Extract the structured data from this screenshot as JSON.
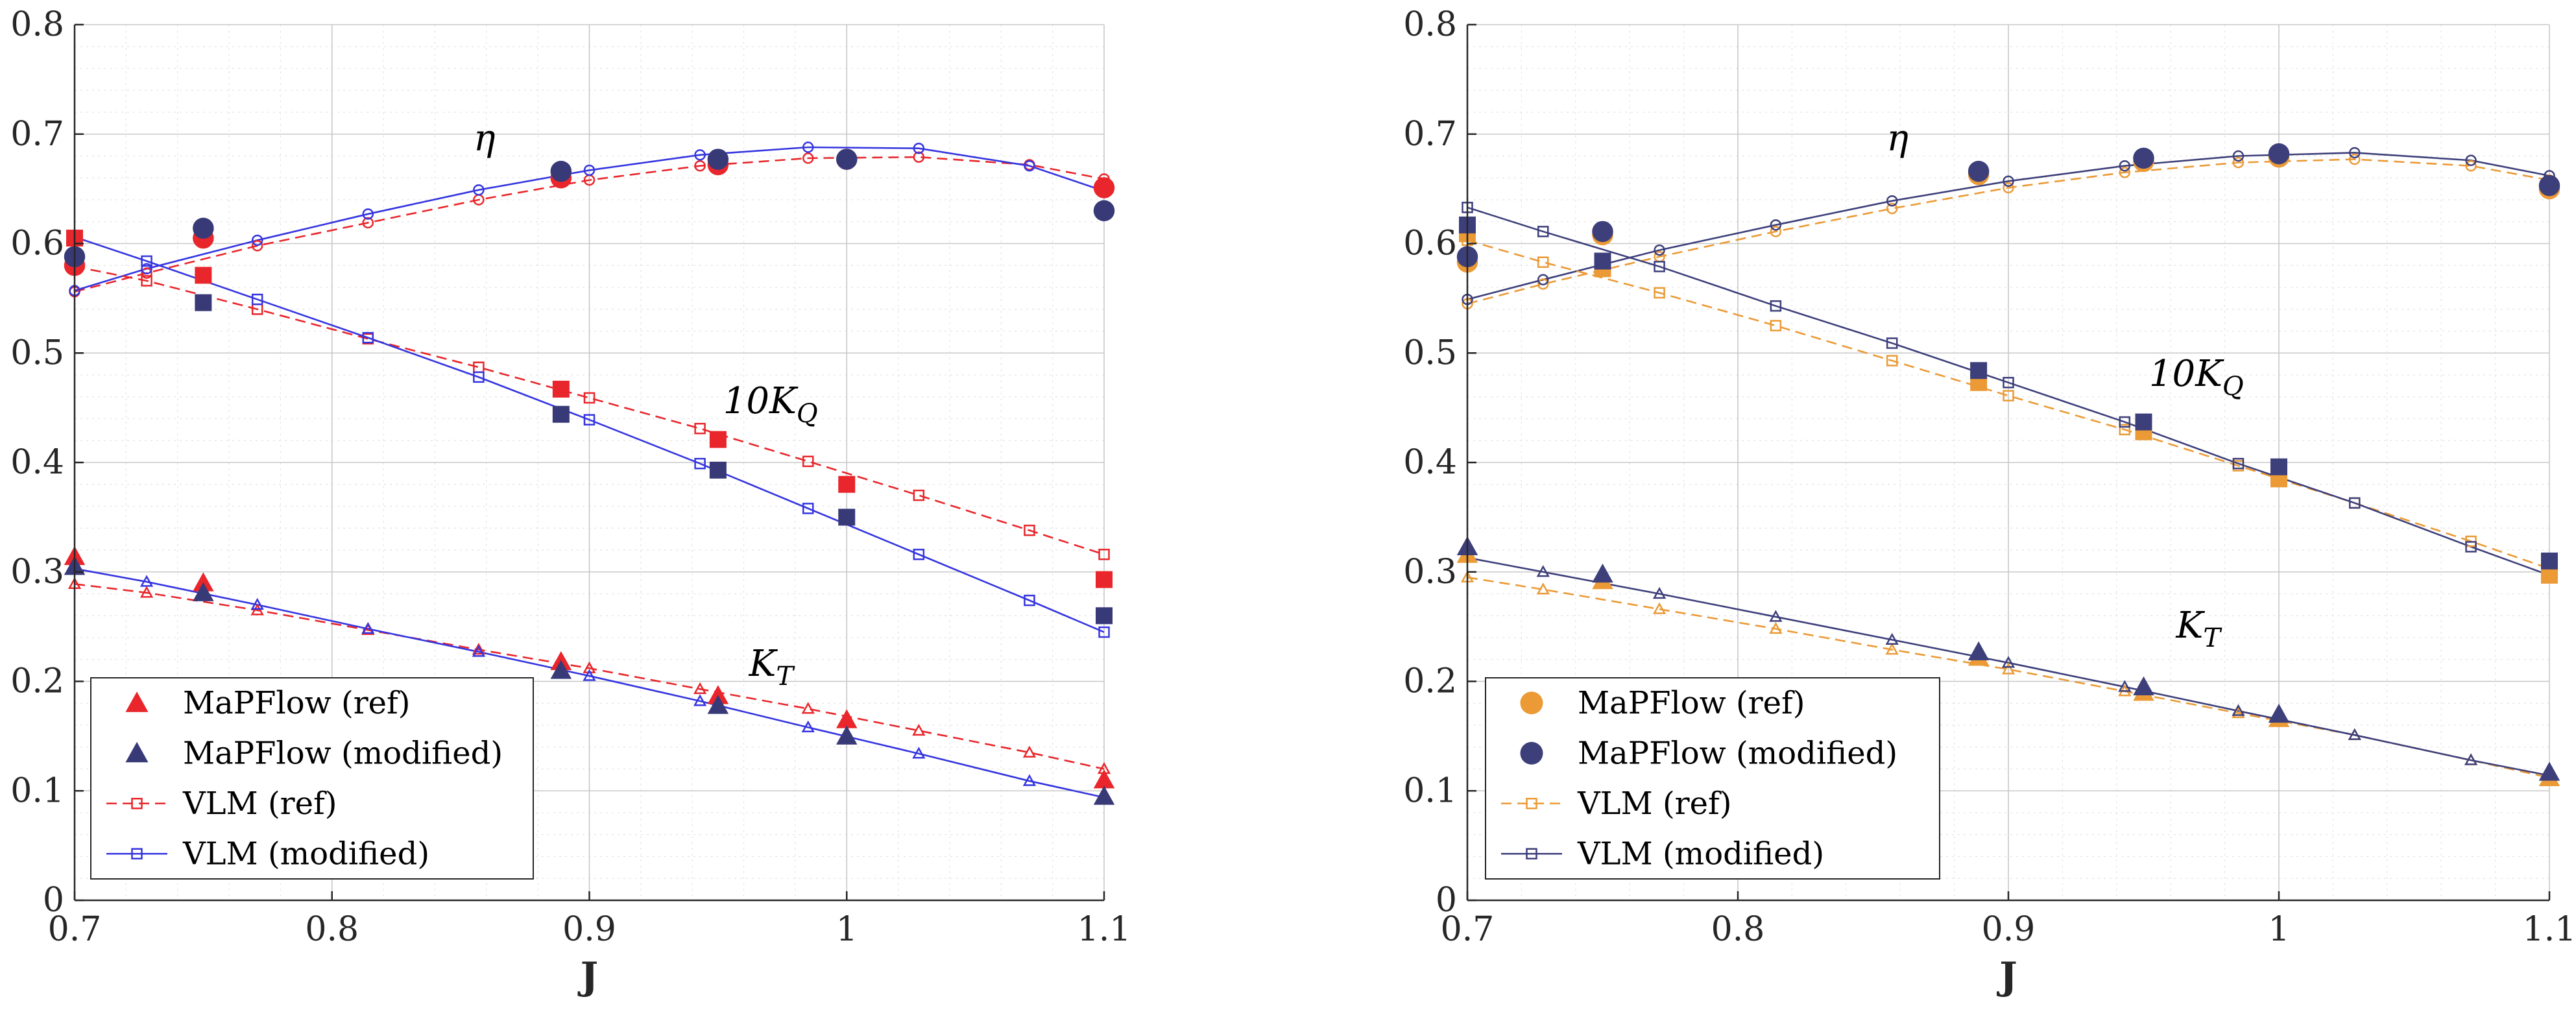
{
  "chart_data": [
    {
      "type": "line",
      "panel": "left",
      "xlabel": "J",
      "ylabel": "",
      "xlim": [
        0.7,
        1.1
      ],
      "ylim": [
        0,
        0.8
      ],
      "xticks": [
        0.7,
        0.8,
        0.9,
        1,
        1.1
      ],
      "xtick_labels": [
        "0.7",
        "0.8",
        "0.9",
        "1",
        "1.1"
      ],
      "yticks": [
        0,
        0.1,
        0.2,
        0.3,
        0.4,
        0.5,
        0.6,
        0.7,
        0.8
      ],
      "ytick_labels": [
        "0",
        "0.1",
        "0.2",
        "0.3",
        "0.4",
        "0.5",
        "0.6",
        "0.7",
        "0.8"
      ],
      "grid": true,
      "legend_position": "bottom-left",
      "colors": {
        "ref": "#e8262b",
        "modified": "#3535e0",
        "ref_points": "#e8262b",
        "modified_points": "#383a78"
      },
      "annotations": [
        {
          "text": "η",
          "x": 0.855,
          "y": 0.685
        },
        {
          "text": "10K",
          "sub": "Q",
          "x": 0.952,
          "y": 0.445
        },
        {
          "text": "K",
          "sub": "T",
          "x": 0.962,
          "y": 0.205
        }
      ],
      "legend": [
        {
          "label": "MaPFlow (ref)",
          "marker": "triangle-filled",
          "color": "#e8262b"
        },
        {
          "label": "MaPFlow (modified)",
          "marker": "triangle-filled",
          "color": "#383a78"
        },
        {
          "label": "VLM (ref)",
          "marker": "square-open",
          "line": "dashed",
          "color": "#e8262b"
        },
        {
          "label": "VLM (modified)",
          "marker": "square-open",
          "line": "solid",
          "color": "#3535e0"
        }
      ],
      "series": [
        {
          "name": "VLM (ref) η",
          "style": "dashed",
          "marker": "circle-open",
          "color": "#e8262b",
          "x": [
            0.7,
            0.728,
            0.771,
            0.814,
            0.857,
            0.9,
            0.943,
            0.985,
            1.028,
            1.071,
            1.1
          ],
          "y": [
            0.556,
            0.573,
            0.598,
            0.619,
            0.64,
            0.658,
            0.671,
            0.678,
            0.679,
            0.672,
            0.659
          ]
        },
        {
          "name": "VLM (modified) η",
          "style": "solid",
          "marker": "circle-open",
          "color": "#3535e0",
          "x": [
            0.7,
            0.728,
            0.771,
            0.814,
            0.857,
            0.9,
            0.943,
            0.985,
            1.028,
            1.071,
            1.1
          ],
          "y": [
            0.557,
            0.577,
            0.603,
            0.627,
            0.649,
            0.667,
            0.681,
            0.688,
            0.687,
            0.671,
            0.648
          ]
        },
        {
          "name": "VLM (ref) 10KQ",
          "style": "dashed",
          "marker": "square-open",
          "color": "#e8262b",
          "x": [
            0.7,
            0.728,
            0.771,
            0.814,
            0.857,
            0.9,
            0.943,
            0.985,
            1.028,
            1.071,
            1.1
          ],
          "y": [
            0.579,
            0.566,
            0.54,
            0.513,
            0.487,
            0.459,
            0.431,
            0.401,
            0.37,
            0.338,
            0.316
          ]
        },
        {
          "name": "VLM (modified) 10KQ",
          "style": "solid",
          "marker": "square-open",
          "color": "#3535e0",
          "x": [
            0.7,
            0.728,
            0.771,
            0.814,
            0.857,
            0.9,
            0.943,
            0.985,
            1.028,
            1.071,
            1.1
          ],
          "y": [
            0.606,
            0.584,
            0.549,
            0.514,
            0.478,
            0.439,
            0.399,
            0.358,
            0.316,
            0.274,
            0.245
          ]
        },
        {
          "name": "VLM (ref) KT",
          "style": "dashed",
          "marker": "triangle-open",
          "color": "#e8262b",
          "x": [
            0.7,
            0.728,
            0.771,
            0.814,
            0.857,
            0.9,
            0.943,
            0.985,
            1.028,
            1.071,
            1.1
          ],
          "y": [
            0.289,
            0.281,
            0.265,
            0.247,
            0.229,
            0.212,
            0.193,
            0.175,
            0.155,
            0.135,
            0.12
          ]
        },
        {
          "name": "VLM (modified) KT",
          "style": "solid",
          "marker": "triangle-open",
          "color": "#3535e0",
          "x": [
            0.7,
            0.728,
            0.771,
            0.814,
            0.857,
            0.9,
            0.943,
            0.985,
            1.028,
            1.071,
            1.1
          ],
          "y": [
            0.303,
            0.291,
            0.27,
            0.248,
            0.227,
            0.205,
            0.182,
            0.158,
            0.134,
            0.109,
            0.094
          ]
        },
        {
          "name": "MaPFlow (ref) η",
          "marker": "circle-filled",
          "color": "#e8262b",
          "x": [
            0.7,
            0.75,
            0.889,
            0.95,
            1,
            1.1
          ],
          "y": [
            0.58,
            0.605,
            0.66,
            0.672,
            0.677,
            0.651
          ]
        },
        {
          "name": "MaPFlow (modified) η",
          "marker": "circle-filled",
          "color": "#383a78",
          "x": [
            0.7,
            0.75,
            0.889,
            0.95,
            1,
            1.1
          ],
          "y": [
            0.588,
            0.614,
            0.666,
            0.677,
            0.677,
            0.63
          ]
        },
        {
          "name": "MaPFlow (ref) 10KQ",
          "marker": "square-filled",
          "color": "#e8262b",
          "x": [
            0.7,
            0.75,
            0.889,
            0.95,
            1,
            1.1
          ],
          "y": [
            0.605,
            0.571,
            0.467,
            0.421,
            0.38,
            0.293
          ]
        },
        {
          "name": "MaPFlow (modified) 10KQ",
          "marker": "square-filled",
          "color": "#383a78",
          "x": [
            0.75,
            0.889,
            0.95,
            1,
            1.1
          ],
          "y": [
            0.546,
            0.444,
            0.393,
            0.35,
            0.26
          ]
        },
        {
          "name": "MaPFlow (ref) KT",
          "marker": "triangle-filled",
          "color": "#e8262b",
          "x": [
            0.7,
            0.75,
            0.889,
            0.95,
            1,
            1.1
          ],
          "y": [
            0.314,
            0.29,
            0.218,
            0.187,
            0.165,
            0.11
          ]
        },
        {
          "name": "MaPFlow (modified) KT",
          "marker": "triangle-filled",
          "color": "#383a78",
          "x": [
            0.7,
            0.75,
            0.889,
            0.95,
            1,
            1.1
          ],
          "y": [
            0.305,
            0.281,
            0.21,
            0.178,
            0.15,
            0.095
          ]
        }
      ]
    },
    {
      "type": "line",
      "panel": "right",
      "xlabel": "J",
      "ylabel": "",
      "xlim": [
        0.7,
        1.1
      ],
      "ylim": [
        0,
        0.8
      ],
      "xticks": [
        0.7,
        0.8,
        0.9,
        1,
        1.1
      ],
      "xtick_labels": [
        "0.7",
        "0.8",
        "0.9",
        "1",
        "1.1"
      ],
      "yticks": [
        0,
        0.1,
        0.2,
        0.3,
        0.4,
        0.5,
        0.6,
        0.7,
        0.8
      ],
      "ytick_labels": [
        "0",
        "0.1",
        "0.2",
        "0.3",
        "0.4",
        "0.5",
        "0.6",
        "0.7",
        "0.8"
      ],
      "grid": true,
      "legend_position": "bottom-left",
      "colors": {
        "ref": "#eb9a35",
        "modified": "#3d3f7a"
      },
      "annotations": [
        {
          "text": "η",
          "x": 0.855,
          "y": 0.685
        },
        {
          "text": "10K",
          "sub": "Q",
          "x": 0.952,
          "y": 0.47
        },
        {
          "text": "K",
          "sub": "T",
          "x": 0.962,
          "y": 0.24
        }
      ],
      "legend": [
        {
          "label": "MaPFlow (ref)",
          "marker": "circle-filled",
          "color": "#eb9a35"
        },
        {
          "label": "MaPFlow (modified)",
          "marker": "circle-filled",
          "color": "#3d3f7a"
        },
        {
          "label": "VLM (ref)",
          "marker": "square-open",
          "line": "dashed",
          "color": "#eb9a35"
        },
        {
          "label": "VLM (modified)",
          "marker": "square-open",
          "line": "solid",
          "color": "#3d3f7a"
        }
      ],
      "series": [
        {
          "name": "VLM (ref) η",
          "style": "dashed",
          "marker": "circle-open",
          "color": "#eb9a35",
          "x": [
            0.7,
            0.728,
            0.771,
            0.814,
            0.857,
            0.9,
            0.943,
            0.985,
            1.028,
            1.071,
            1.1
          ],
          "y": [
            0.545,
            0.563,
            0.588,
            0.611,
            0.632,
            0.651,
            0.665,
            0.674,
            0.677,
            0.671,
            0.658
          ]
        },
        {
          "name": "VLM (modified) η",
          "style": "solid",
          "marker": "circle-open",
          "color": "#3d3f7a",
          "x": [
            0.7,
            0.728,
            0.771,
            0.814,
            0.857,
            0.9,
            0.943,
            0.985,
            1.028,
            1.071,
            1.1
          ],
          "y": [
            0.549,
            0.567,
            0.594,
            0.617,
            0.639,
            0.657,
            0.671,
            0.68,
            0.683,
            0.676,
            0.662
          ]
        },
        {
          "name": "VLM (ref) 10KQ",
          "style": "dashed",
          "marker": "square-open",
          "color": "#eb9a35",
          "x": [
            0.7,
            0.728,
            0.771,
            0.814,
            0.857,
            0.9,
            0.943,
            0.985,
            1.028,
            1.071,
            1.1
          ],
          "y": [
            0.603,
            0.583,
            0.555,
            0.525,
            0.493,
            0.461,
            0.43,
            0.397,
            0.363,
            0.328,
            0.303
          ]
        },
        {
          "name": "VLM (modified) 10KQ",
          "style": "solid",
          "marker": "square-open",
          "color": "#3d3f7a",
          "x": [
            0.7,
            0.728,
            0.771,
            0.814,
            0.857,
            0.9,
            0.943,
            0.985,
            1.028,
            1.071,
            1.1
          ],
          "y": [
            0.633,
            0.611,
            0.579,
            0.543,
            0.509,
            0.473,
            0.437,
            0.399,
            0.363,
            0.323,
            0.297
          ]
        },
        {
          "name": "VLM (ref) KT",
          "style": "dashed",
          "marker": "triangle-open",
          "color": "#eb9a35",
          "x": [
            0.7,
            0.728,
            0.771,
            0.814,
            0.857,
            0.9,
            0.943,
            0.985,
            1.028,
            1.071,
            1.1
          ],
          "y": [
            0.295,
            0.284,
            0.266,
            0.248,
            0.229,
            0.211,
            0.191,
            0.171,
            0.151,
            0.128,
            0.112
          ]
        },
        {
          "name": "VLM (modified) KT",
          "style": "solid",
          "marker": "triangle-open",
          "color": "#3d3f7a",
          "x": [
            0.7,
            0.728,
            0.771,
            0.814,
            0.857,
            0.9,
            0.943,
            0.985,
            1.028,
            1.071,
            1.1
          ],
          "y": [
            0.313,
            0.3,
            0.28,
            0.259,
            0.238,
            0.217,
            0.195,
            0.173,
            0.151,
            0.128,
            0.114
          ]
        },
        {
          "name": "MaPFlow (ref) η",
          "marker": "circle-filled",
          "color": "#eb9a35",
          "x": [
            0.7,
            0.75,
            0.889,
            0.95,
            1,
            1.1
          ],
          "y": [
            0.583,
            0.608,
            0.663,
            0.675,
            0.679,
            0.65
          ]
        },
        {
          "name": "MaPFlow (modified) η",
          "marker": "circle-filled",
          "color": "#3d3f7a",
          "x": [
            0.7,
            0.75,
            0.889,
            0.95,
            1,
            1.1
          ],
          "y": [
            0.588,
            0.611,
            0.666,
            0.678,
            0.682,
            0.653
          ]
        },
        {
          "name": "MaPFlow (ref) 10KQ",
          "marker": "square-filled",
          "color": "#eb9a35",
          "x": [
            0.7,
            0.75,
            0.889,
            0.95,
            1,
            1.1
          ],
          "y": [
            0.609,
            0.577,
            0.473,
            0.428,
            0.385,
            0.297
          ]
        },
        {
          "name": "MaPFlow (modified) 10KQ",
          "marker": "square-filled",
          "color": "#3d3f7a",
          "x": [
            0.7,
            0.75,
            0.889,
            0.95,
            1,
            1.1
          ],
          "y": [
            0.617,
            0.584,
            0.484,
            0.437,
            0.396,
            0.31
          ]
        },
        {
          "name": "MaPFlow (ref) KT",
          "marker": "triangle-filled",
          "color": "#eb9a35",
          "x": [
            0.7,
            0.75,
            0.889,
            0.95,
            1,
            1.1
          ],
          "y": [
            0.316,
            0.292,
            0.222,
            0.19,
            0.166,
            0.112
          ]
        },
        {
          "name": "MaPFlow (modified) KT",
          "marker": "triangle-filled",
          "color": "#3d3f7a",
          "x": [
            0.7,
            0.75,
            0.889,
            0.95,
            1,
            1.1
          ],
          "y": [
            0.323,
            0.298,
            0.227,
            0.195,
            0.17,
            0.117
          ]
        }
      ]
    }
  ]
}
